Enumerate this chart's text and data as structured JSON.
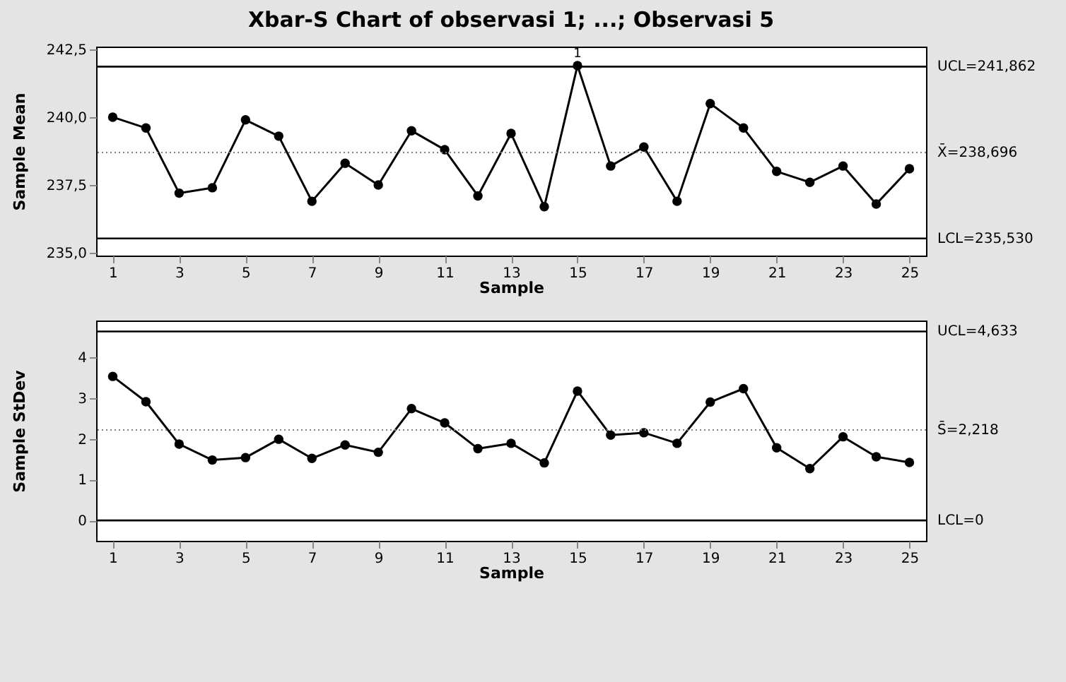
{
  "chart_data": [
    {
      "type": "line",
      "title": "Xbar-S Chart of observasi 1; ...; Observasi 5",
      "xlabel": "Sample",
      "ylabel": "Sample Mean",
      "x": [
        1,
        2,
        3,
        4,
        5,
        6,
        7,
        8,
        9,
        10,
        11,
        12,
        13,
        14,
        15,
        16,
        17,
        18,
        19,
        20,
        21,
        22,
        23,
        24,
        25
      ],
      "series": [
        {
          "color": "#000000",
          "values": [
            240.0,
            239.6,
            237.2,
            237.4,
            239.9,
            239.3,
            236.9,
            238.3,
            237.5,
            239.5,
            238.8,
            237.1,
            239.4,
            236.7,
            241.9,
            238.2,
            238.9,
            236.9,
            240.5,
            239.6,
            238.0,
            237.6,
            238.2,
            236.8,
            238.1
          ]
        }
      ],
      "xlim": [
        0.5,
        25.5
      ],
      "xticks": [
        1,
        3,
        5,
        7,
        9,
        11,
        13,
        15,
        17,
        19,
        21,
        23,
        25
      ],
      "ylim": [
        234.9,
        242.6
      ],
      "yticks": [
        {
          "value": 235,
          "label": "235,0"
        },
        {
          "value": 237.5,
          "label": "237,5"
        },
        {
          "value": 240,
          "label": "240,0"
        },
        {
          "value": 242.5,
          "label": "242,5"
        }
      ],
      "ref_lines": [
        {
          "axis": "y",
          "value": 241.862,
          "label": "UCL=241,862",
          "color": "#000000"
        },
        {
          "axis": "y",
          "value": 238.696,
          "label": "X̄=238,696",
          "color": "#808080",
          "line_style": "dotted"
        },
        {
          "axis": "y",
          "value": 235.53,
          "label": "LCL=235,530",
          "color": "#000000"
        }
      ],
      "annotations": [
        {
          "text": "1",
          "x": 15,
          "y": 241.9
        }
      ],
      "marker": "circle",
      "line_style": "solid",
      "grid": false
    },
    {
      "type": "line",
      "xlabel": "Sample",
      "ylabel": "Sample StDev",
      "x": [
        1,
        2,
        3,
        4,
        5,
        6,
        7,
        8,
        9,
        10,
        11,
        12,
        13,
        14,
        15,
        16,
        17,
        18,
        19,
        20,
        21,
        22,
        23,
        24,
        25
      ],
      "series": [
        {
          "color": "#000000",
          "values": [
            3.53,
            2.91,
            1.87,
            1.48,
            1.54,
            1.99,
            1.52,
            1.85,
            1.67,
            2.74,
            2.39,
            1.76,
            1.89,
            1.41,
            3.17,
            2.09,
            2.15,
            1.89,
            2.9,
            3.23,
            1.78,
            1.27,
            2.05,
            1.56,
            1.42
          ]
        }
      ],
      "xlim": [
        0.5,
        25.5
      ],
      "xticks": [
        1,
        3,
        5,
        7,
        9,
        11,
        13,
        15,
        17,
        19,
        21,
        23,
        25
      ],
      "ylim": [
        -0.5,
        4.9
      ],
      "yticks": [
        0,
        1,
        2,
        3,
        4
      ],
      "ref_lines": [
        {
          "axis": "y",
          "value": 4.633,
          "label": "UCL=4,633",
          "color": "#000000"
        },
        {
          "axis": "y",
          "value": 2.218,
          "label": "S̄=2,218",
          "color": "#808080",
          "line_style": "dotted"
        },
        {
          "axis": "y",
          "value": 0,
          "label": "LCL=0",
          "color": "#000000"
        }
      ],
      "marker": "circle",
      "line_style": "solid",
      "grid": false
    }
  ]
}
